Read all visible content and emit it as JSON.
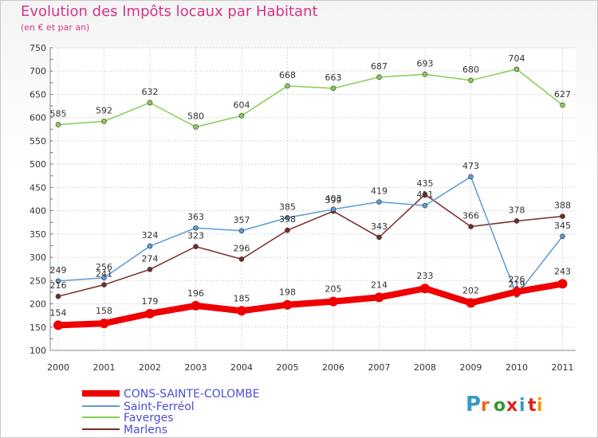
{
  "header": {
    "title": "Evolution des Impôts locaux par Habitant",
    "subtitle": "(en € et par an)"
  },
  "logo": {
    "text": "Proxiti"
  },
  "chart_data": {
    "type": "line",
    "title": "Evolution des Impôts locaux par Habitant",
    "subtitle": "(en € et par an)",
    "x": [
      "2000",
      "2001",
      "2002",
      "2003",
      "2004",
      "2005",
      "2006",
      "2007",
      "2008",
      "2009",
      "2010",
      "2011"
    ],
    "ylim": [
      100,
      750
    ],
    "yticks": [
      100,
      150,
      200,
      250,
      300,
      350,
      400,
      450,
      500,
      550,
      600,
      650,
      700,
      750
    ],
    "grid": true,
    "legend": "bottom-left",
    "series": [
      {
        "name": "CONS-SAINTE-COLOMBE",
        "color": "#ee0000",
        "values": [
          154,
          158,
          179,
          196,
          185,
          198,
          205,
          214,
          233,
          202,
          226,
          243
        ]
      },
      {
        "name": "Saint-Ferréol",
        "color": "#5b9bd5",
        "values": [
          249,
          256,
          324,
          363,
          357,
          385,
          403,
          419,
          411,
          473,
          219,
          345
        ]
      },
      {
        "name": "Faverges",
        "color": "#88cc55",
        "values": [
          585,
          592,
          632,
          580,
          604,
          668,
          663,
          687,
          693,
          680,
          704,
          627
        ]
      },
      {
        "name": "Marlens",
        "color": "#7a2a2a",
        "values": [
          216,
          241,
          274,
          323,
          296,
          358,
          399,
          343,
          435,
          366,
          378,
          388
        ]
      }
    ]
  }
}
